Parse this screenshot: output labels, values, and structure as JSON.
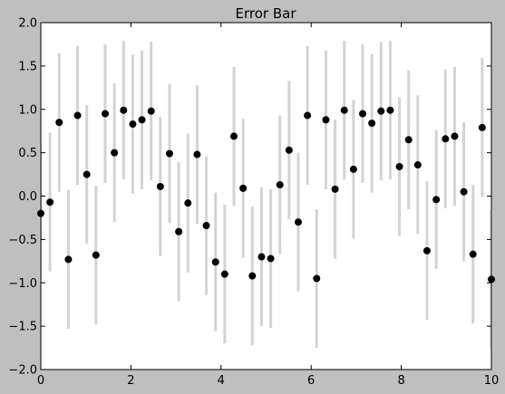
{
  "chart_data": {
    "type": "scatter",
    "title": "Error Bar",
    "xlabel": "",
    "ylabel": "",
    "xlim": [
      0,
      10
    ],
    "ylim": [
      -2.0,
      2.0
    ],
    "x_ticks": [
      "0",
      "2",
      "4",
      "6",
      "8",
      "10"
    ],
    "y_ticks": [
      "−2.0",
      "−1.5",
      "−1.0",
      "−0.5",
      "0.0",
      "0.5",
      "1.0",
      "1.5",
      "2.0"
    ],
    "grid": false,
    "legend": "none",
    "colors": {
      "marker": "#000000",
      "errorbar": "#d3d3d3",
      "axes_bg": "#ffffff",
      "figure_bg": "#bfbfbf"
    },
    "error": 0.8,
    "series": [
      {
        "x": [
          0.0,
          0.204,
          0.408,
          0.612,
          0.816,
          1.02,
          1.224,
          1.429,
          1.633,
          1.837,
          2.041,
          2.245,
          2.449,
          2.653,
          2.857,
          3.061,
          3.265,
          3.469,
          3.673,
          3.878,
          4.082,
          4.286,
          4.49,
          4.694,
          4.898,
          5.102,
          5.306,
          5.51,
          5.714,
          5.918,
          6.122,
          6.327,
          6.531,
          6.735,
          6.939,
          7.143,
          7.347,
          7.551,
          7.755,
          7.959,
          8.163,
          8.367,
          8.571,
          8.776,
          8.98,
          9.184,
          9.388,
          9.592,
          9.796,
          10.0
        ],
        "y": [
          -0.2,
          -0.07,
          0.85,
          -0.73,
          0.93,
          0.25,
          -0.68,
          0.95,
          0.5,
          0.99,
          0.83,
          0.88,
          0.98,
          0.11,
          0.49,
          -0.41,
          -0.08,
          0.48,
          -0.34,
          -0.76,
          -0.9,
          0.69,
          0.09,
          -0.92,
          -0.7,
          -0.72,
          0.13,
          0.53,
          -0.3,
          0.93,
          -0.95,
          0.88,
          0.08,
          0.99,
          0.31,
          0.95,
          0.84,
          0.98,
          0.99,
          0.34,
          0.65,
          0.36,
          -0.63,
          -0.04,
          0.66,
          0.69,
          0.05,
          -0.67,
          0.79,
          -0.96
        ]
      }
    ]
  }
}
